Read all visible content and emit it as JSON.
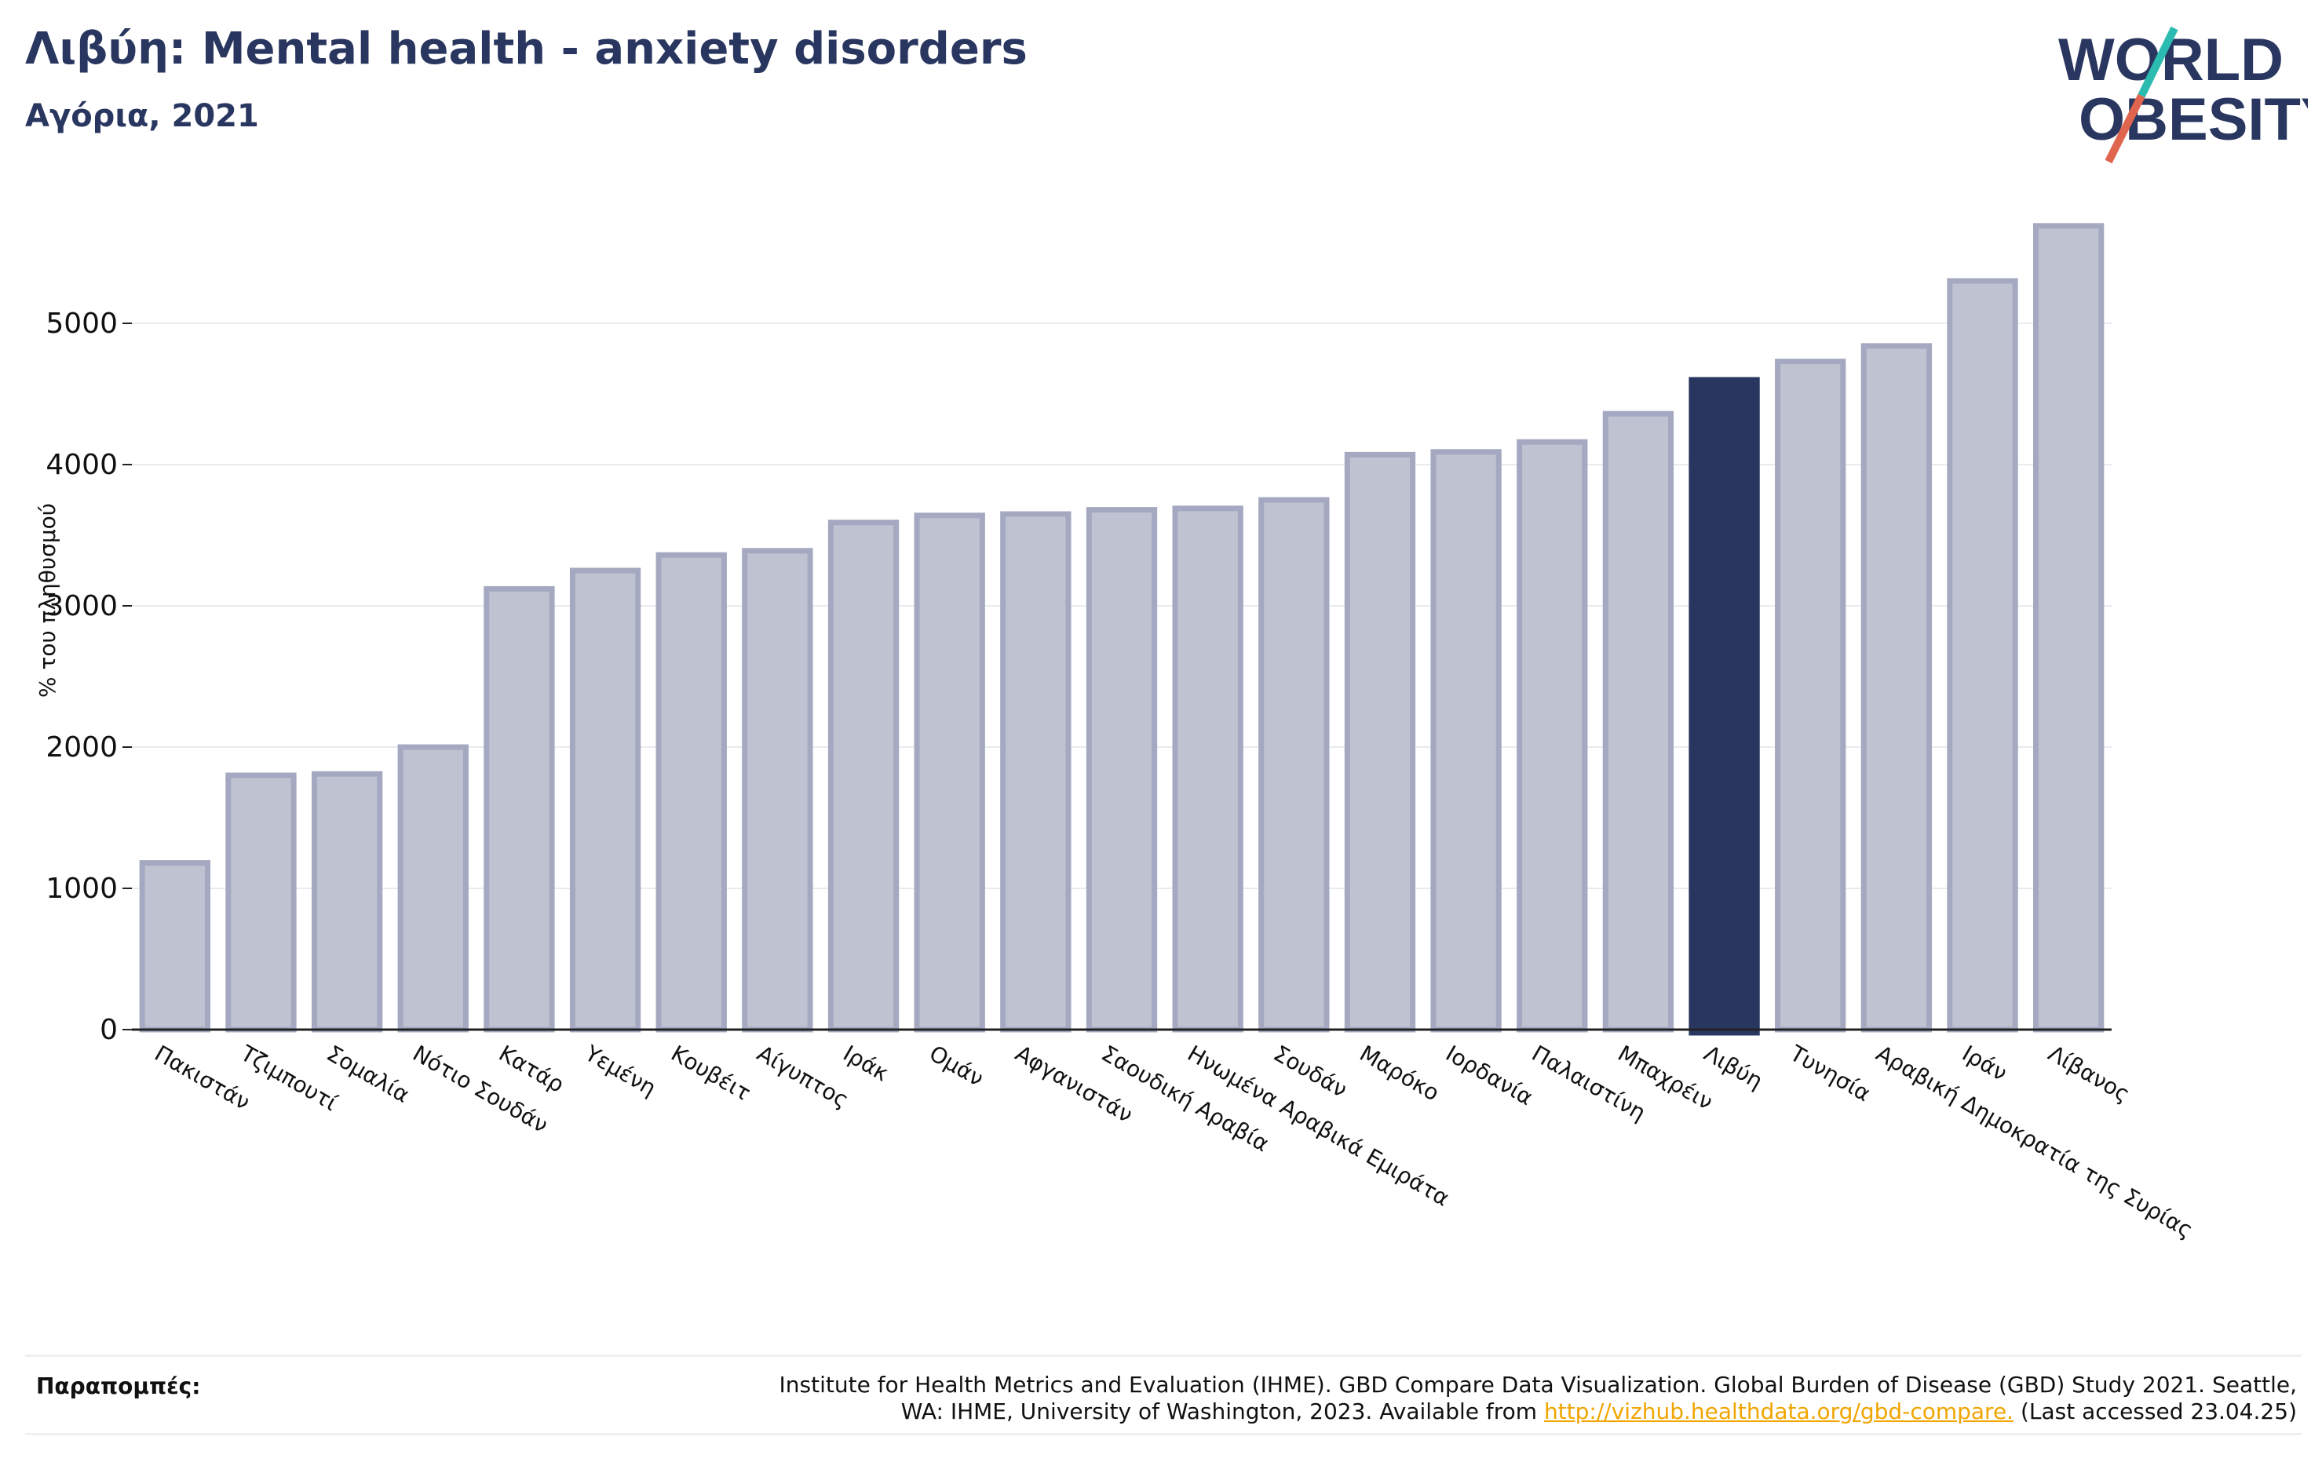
{
  "header": {
    "title": "Λιβύη: Mental health - anxiety disorders",
    "subtitle": "Αγόρια, 2021"
  },
  "logo": {
    "line1": "WORLD",
    "line2": "OBESITY",
    "colors": {
      "text": "#29365f",
      "slash_top": "#2bbbb0",
      "slash_bottom": "#e0654f"
    }
  },
  "colors": {
    "bar": "#bfc2d0",
    "bar_stroke": "#a4a9c1",
    "highlight": "#29365f",
    "axis": "#222222",
    "grid": "#e9ebf0"
  },
  "chart_data": {
    "type": "bar",
    "ylabel": "% του πληθυσμού",
    "ylim": [
      0,
      5900
    ],
    "yticks": [
      0,
      1000,
      2000,
      3000,
      4000,
      5000
    ],
    "grid": true,
    "highlight": "Λιβύη",
    "categories": [
      "Πακιστάν",
      "Τζιμπουτί",
      "Σομαλία",
      "Νότιο Σουδάν",
      "Κατάρ",
      "Υεμένη",
      "Κουβέιτ",
      "Αίγυπτος",
      "Ιράκ",
      "Ομάν",
      "Αφγανιστάν",
      "Σαουδική Αραβία",
      "Ηνωμένα Αραβικά Εμιράτα",
      "Σουδάν",
      "Μαρόκο",
      "Ιορδανία",
      "Παλαιστίνη",
      "Μπαχρέιν",
      "Λιβύη",
      "Τυνησία",
      "Αραβική Δημοκρατία της Συρίας",
      "Ιράν",
      "Λίβανος"
    ],
    "values": [
      1180,
      1800,
      1810,
      2000,
      3120,
      3250,
      3360,
      3390,
      3590,
      3640,
      3650,
      3680,
      3690,
      3750,
      4070,
      4090,
      4160,
      4360,
      4600,
      4730,
      4840,
      5300,
      5690
    ]
  },
  "references": {
    "label": "Παραπομπές:",
    "text_line1": "Institute for Health Metrics and Evaluation (IHME). GBD Compare Data Visualization. Global Burden of Disease (GBD) Study 2021. Seattle,",
    "text_line2_pre": "WA: IHME, University of Washington, 2023. Available from ",
    "link": "http://vizhub.healthdata.org/gbd-compare.",
    "text_line2_post": " (Last accessed 23.04.25)"
  }
}
